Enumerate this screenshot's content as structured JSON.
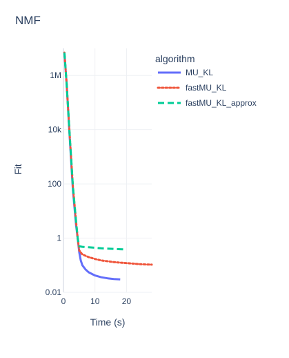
{
  "chart_data": {
    "type": "line",
    "title": "NMF",
    "xlabel": "Time (s)",
    "ylabel": "Fit",
    "x_range": [
      0,
      28
    ],
    "y_scale": "log",
    "y_range": [
      0.01,
      10000000
    ],
    "x_ticks": [
      0,
      10,
      20
    ],
    "x_tick_labels": [
      "0",
      "10",
      "20"
    ],
    "y_ticks": [
      0.01,
      1,
      100,
      10000,
      1000000
    ],
    "y_tick_labels": [
      "0.01",
      "1",
      "100",
      "10k",
      "1M"
    ],
    "grid": true,
    "legend": {
      "title": "algorithm",
      "position": "top-right"
    },
    "series": [
      {
        "name": "MU_KL",
        "color": "#636efa",
        "dash": "solid",
        "x": [
          0.3,
          1,
          2,
          3,
          4,
          4.5,
          5,
          5.5,
          6,
          7,
          8,
          10,
          12,
          14,
          16,
          18
        ],
        "y": [
          7000000,
          500000,
          5000,
          60,
          3,
          1,
          0.3,
          0.15,
          0.1,
          0.07,
          0.055,
          0.042,
          0.036,
          0.033,
          0.031,
          0.03
        ]
      },
      {
        "name": "fastMU_KL",
        "color": "#ef553b",
        "dash": "dot",
        "x": [
          0.3,
          1,
          2,
          3,
          4,
          4.5,
          5,
          6,
          8,
          10,
          12,
          14,
          16,
          18,
          20,
          22,
          24,
          26,
          28
        ],
        "y": [
          7000000,
          500000,
          6000,
          80,
          4,
          1,
          0.35,
          0.25,
          0.2,
          0.17,
          0.15,
          0.14,
          0.13,
          0.125,
          0.12,
          0.115,
          0.11,
          0.107,
          0.105
        ]
      },
      {
        "name": "fastMU_KL_approx",
        "color": "#00cc96",
        "dash": "dash",
        "x": [
          0.3,
          1,
          2,
          3,
          4,
          4.5,
          5,
          6,
          8,
          10,
          12,
          14,
          16,
          18,
          20
        ],
        "y": [
          7000000,
          500000,
          6000,
          80,
          4,
          1,
          0.5,
          0.48,
          0.46,
          0.44,
          0.42,
          0.41,
          0.4,
          0.39,
          0.38
        ]
      }
    ]
  }
}
